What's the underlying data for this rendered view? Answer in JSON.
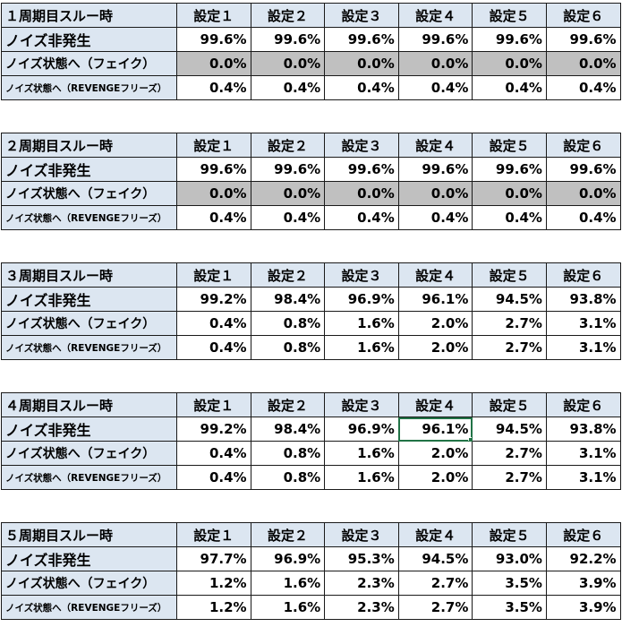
{
  "settings": [
    "設定１",
    "設定２",
    "設定３",
    "設定４",
    "設定５",
    "設定６"
  ],
  "row_labels": {
    "nonoise": "ノイズ非発生",
    "fake": "ノイズ状態へ（フェイク）",
    "revenge": "ノイズ状態へ（REVENGEフリーズ）"
  },
  "tables": [
    {
      "title": "１周期目スルー時",
      "nonoise": [
        "99.6%",
        "99.6%",
        "99.6%",
        "99.6%",
        "99.6%",
        "99.6%"
      ],
      "fake": [
        "0.0%",
        "0.0%",
        "0.0%",
        "0.0%",
        "0.0%",
        "0.0%"
      ],
      "revenge": [
        "0.4%",
        "0.4%",
        "0.4%",
        "0.4%",
        "0.4%",
        "0.4%"
      ],
      "fake_row_gray": true
    },
    {
      "title": "２周期目スルー時",
      "nonoise": [
        "99.6%",
        "99.6%",
        "99.6%",
        "99.6%",
        "99.6%",
        "99.6%"
      ],
      "fake": [
        "0.0%",
        "0.0%",
        "0.0%",
        "0.0%",
        "0.0%",
        "0.0%"
      ],
      "revenge": [
        "0.4%",
        "0.4%",
        "0.4%",
        "0.4%",
        "0.4%",
        "0.4%"
      ],
      "fake_row_gray": true
    },
    {
      "title": "３周期目スルー時",
      "nonoise": [
        "99.2%",
        "98.4%",
        "96.9%",
        "96.1%",
        "94.5%",
        "93.8%"
      ],
      "fake": [
        "0.4%",
        "0.8%",
        "1.6%",
        "2.0%",
        "2.7%",
        "3.1%"
      ],
      "revenge": [
        "0.4%",
        "0.8%",
        "1.6%",
        "2.0%",
        "2.7%",
        "3.1%"
      ],
      "fake_row_gray": false
    },
    {
      "title": "４周期目スルー時",
      "nonoise": [
        "99.2%",
        "98.4%",
        "96.9%",
        "96.1%",
        "94.5%",
        "93.8%"
      ],
      "fake": [
        "0.4%",
        "0.8%",
        "1.6%",
        "2.0%",
        "2.7%",
        "3.1%"
      ],
      "revenge": [
        "0.4%",
        "0.8%",
        "1.6%",
        "2.0%",
        "2.7%",
        "3.1%"
      ],
      "fake_row_gray": false
    },
    {
      "title": "５周期目スルー時",
      "nonoise": [
        "97.7%",
        "96.9%",
        "95.3%",
        "94.5%",
        "93.0%",
        "92.2%"
      ],
      "fake": [
        "1.2%",
        "1.6%",
        "2.3%",
        "2.7%",
        "3.5%",
        "3.9%"
      ],
      "revenge": [
        "1.2%",
        "1.6%",
        "2.3%",
        "2.7%",
        "3.5%",
        "3.9%"
      ],
      "fake_row_gray": false
    }
  ],
  "selection": {
    "table": 3,
    "row": "nonoise",
    "setting": 4
  },
  "colors": {
    "header_fill": "#dce6f1",
    "gray_fill": "#c0c0c0",
    "selection": "#217346"
  }
}
